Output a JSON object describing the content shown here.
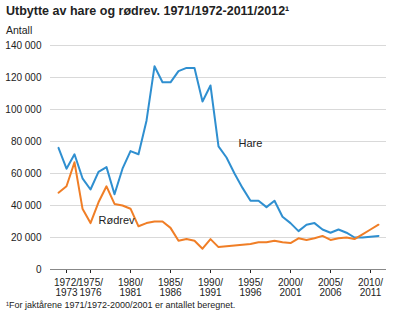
{
  "chart_data": {
    "type": "line",
    "title": "Utbytte av hare og rødrev. 1971/1972-2011/2012¹",
    "y_label": "Antall",
    "note": "¹For jaktårene 1971/1972-2000/2001 er antallet beregnet.",
    "categories": [
      null,
      "1972/\n1973",
      null,
      null,
      "1975/\n1976",
      null,
      null,
      null,
      null,
      "1980/\n1981",
      null,
      null,
      null,
      null,
      "1985/\n1986",
      null,
      null,
      null,
      null,
      "1990/\n1991",
      null,
      null,
      null,
      null,
      "1995/\n1996",
      null,
      null,
      null,
      null,
      "2000/\n2001",
      null,
      null,
      null,
      null,
      "2005/\n2006",
      null,
      null,
      null,
      null,
      "2010/\n2011",
      null
    ],
    "series": [
      {
        "name": "Hare",
        "color": "#2f8fd0",
        "values": [
          76000,
          63000,
          72000,
          57000,
          50000,
          61000,
          64000,
          47000,
          63000,
          74000,
          72000,
          93000,
          127000,
          117000,
          117000,
          124000,
          126000,
          126000,
          105000,
          115000,
          77000,
          70000,
          60000,
          51000,
          43000,
          43000,
          39000,
          43000,
          33000,
          29000,
          24000,
          28000,
          29000,
          25000,
          23000,
          25000,
          23000,
          20000,
          20000,
          20500,
          21000
        ]
      },
      {
        "name": "Rødrev",
        "color": "#f07e26",
        "values": [
          48000,
          52000,
          67000,
          38000,
          29000,
          42000,
          52000,
          41000,
          40000,
          38000,
          27000,
          29000,
          30000,
          30000,
          26000,
          18000,
          19000,
          18000,
          13000,
          19000,
          14000,
          14500,
          15000,
          15500,
          16000,
          17000,
          17000,
          18000,
          17000,
          16500,
          19500,
          18500,
          19500,
          21000,
          18500,
          19500,
          20000,
          19000,
          22000,
          25000,
          28000
        ]
      }
    ],
    "ylim": [
      0,
      140000
    ],
    "yticks": [
      0,
      {
        "value": 20000,
        "label": "20 000"
      },
      {
        "value": 40000,
        "label": "40 000"
      },
      {
        "value": 60000,
        "label": "60 000"
      },
      {
        "value": 80000,
        "label": "80 000"
      },
      {
        "value": 100000,
        "label": "100 000"
      },
      {
        "value": 120000,
        "label": "120 000"
      },
      {
        "value": 140000,
        "label": "140 000"
      }
    ],
    "grid": true
  }
}
